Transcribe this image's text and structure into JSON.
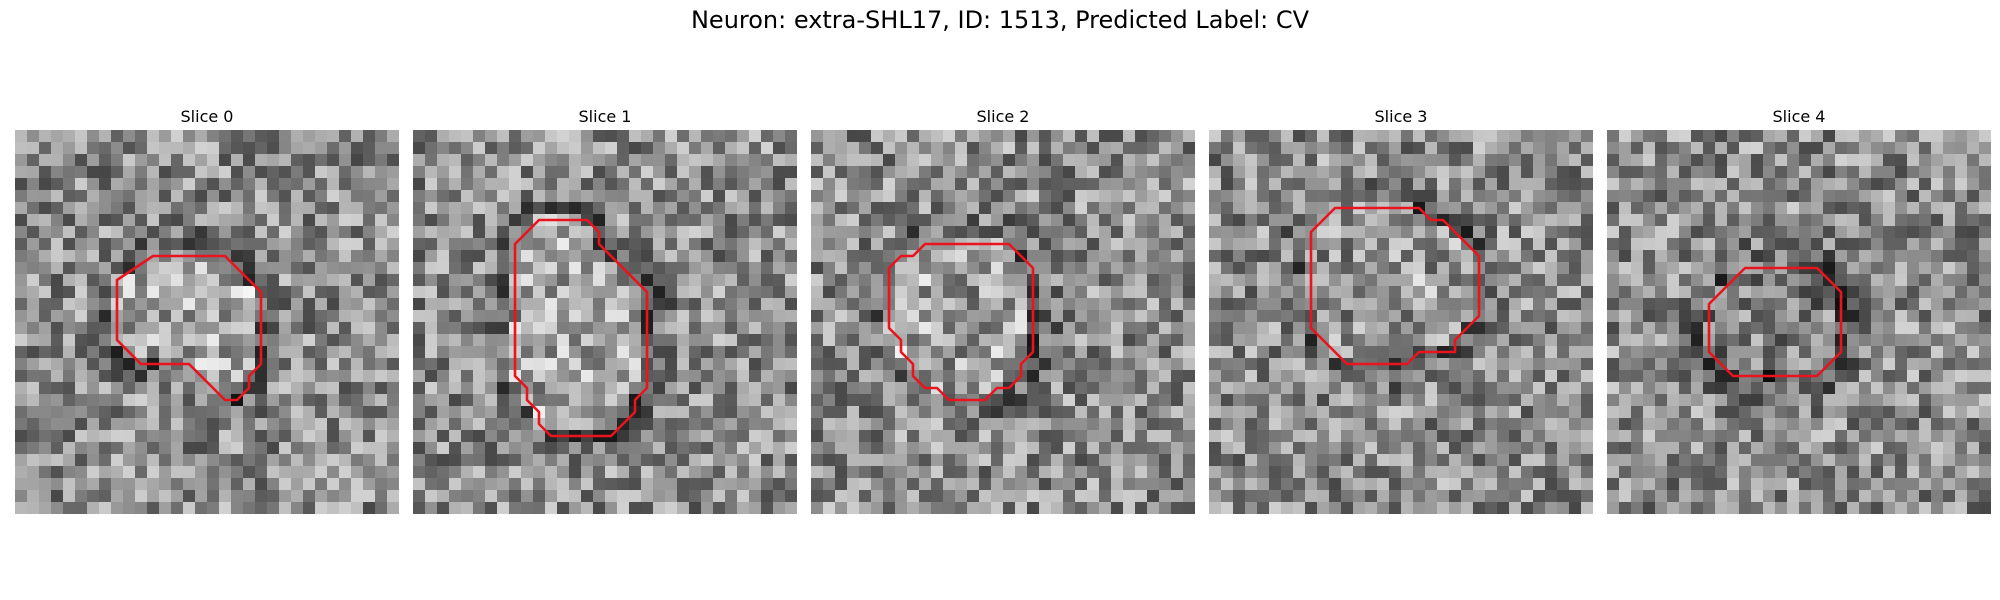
{
  "figure": {
    "title": "Neuron: extra-SHL17, ID: 1513, Predicted Label: CV"
  },
  "contour_color": "#e8141e",
  "panels": [
    {
      "title": "Slice 0",
      "outline": [
        [
          11.5,
          10.5
        ],
        [
          17.5,
          10.5
        ],
        [
          20.5,
          13.5
        ],
        [
          20.5,
          19.5
        ],
        [
          19.5,
          20.5
        ],
        [
          19.5,
          21.5
        ],
        [
          18.5,
          22.5
        ],
        [
          17.5,
          22.5
        ],
        [
          14.5,
          19.5
        ],
        [
          10.5,
          19.5
        ],
        [
          8.5,
          17.5
        ],
        [
          8.5,
          12.5
        ]
      ]
    },
    {
      "title": "Slice 1",
      "outline": [
        [
          10.5,
          7.5
        ],
        [
          14.5,
          7.5
        ],
        [
          15.5,
          8.5
        ],
        [
          15.5,
          9.5
        ],
        [
          19.5,
          13.5
        ],
        [
          19.5,
          21.5
        ],
        [
          18.5,
          22.5
        ],
        [
          18.5,
          23.5
        ],
        [
          16.5,
          25.5
        ],
        [
          11.5,
          25.5
        ],
        [
          10.5,
          24.5
        ],
        [
          10.5,
          23.5
        ],
        [
          9.5,
          22.5
        ],
        [
          9.5,
          21.5
        ],
        [
          8.5,
          20.5
        ],
        [
          8.5,
          19.5
        ],
        [
          8.5,
          9.5
        ]
      ]
    },
    {
      "title": "Slice 2",
      "outline": [
        [
          9.5,
          9.5
        ],
        [
          16.5,
          9.5
        ],
        [
          18.5,
          11.5
        ],
        [
          18.5,
          18.5
        ],
        [
          17.5,
          19.5
        ],
        [
          17.5,
          20.5
        ],
        [
          16.5,
          21.5
        ],
        [
          15.5,
          21.5
        ],
        [
          14.5,
          22.5
        ],
        [
          11.5,
          22.5
        ],
        [
          10.5,
          21.5
        ],
        [
          9.5,
          21.5
        ],
        [
          8.5,
          20.5
        ],
        [
          8.5,
          19.5
        ],
        [
          7.5,
          18.5
        ],
        [
          7.5,
          17.5
        ],
        [
          6.5,
          16.5
        ],
        [
          6.5,
          11.5
        ],
        [
          7.5,
          10.5
        ],
        [
          8.5,
          10.5
        ]
      ]
    },
    {
      "title": "Slice 3",
      "outline": [
        [
          10.5,
          6.5
        ],
        [
          17.5,
          6.5
        ],
        [
          18.5,
          7.5
        ],
        [
          19.5,
          7.5
        ],
        [
          22.5,
          10.5
        ],
        [
          22.5,
          15.5
        ],
        [
          20.5,
          17.5
        ],
        [
          20.5,
          18.5
        ],
        [
          17.5,
          18.5
        ],
        [
          16.5,
          19.5
        ],
        [
          11.5,
          19.5
        ],
        [
          8.5,
          16.5
        ],
        [
          8.5,
          8.5
        ]
      ]
    },
    {
      "title": "Slice 4",
      "outline": [
        [
          11.5,
          11.5
        ],
        [
          17.5,
          11.5
        ],
        [
          19.5,
          13.5
        ],
        [
          19.5,
          18.5
        ],
        [
          17.5,
          20.5
        ],
        [
          10.5,
          20.5
        ],
        [
          8.5,
          18.5
        ],
        [
          8.5,
          14.5
        ]
      ]
    }
  ]
}
